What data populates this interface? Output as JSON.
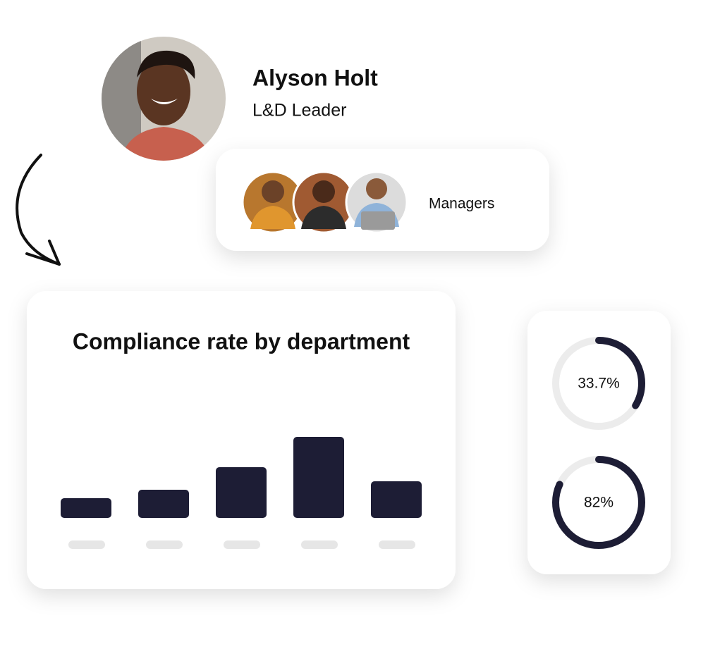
{
  "profile": {
    "name": "Alyson Holt",
    "role": "L&D Leader"
  },
  "group": {
    "label": "Managers"
  },
  "chart_data": [
    {
      "type": "bar",
      "title": "Compliance rate by department",
      "categories": [
        null,
        null,
        null,
        null,
        null
      ],
      "values": [
        28,
        40,
        72,
        115,
        52
      ],
      "color": "#1d1d35"
    },
    {
      "type": "donut",
      "values": [
        33.7,
        82
      ],
      "value_labels": [
        "33.7%",
        "82%"
      ],
      "color": "#1d1d35"
    }
  ]
}
